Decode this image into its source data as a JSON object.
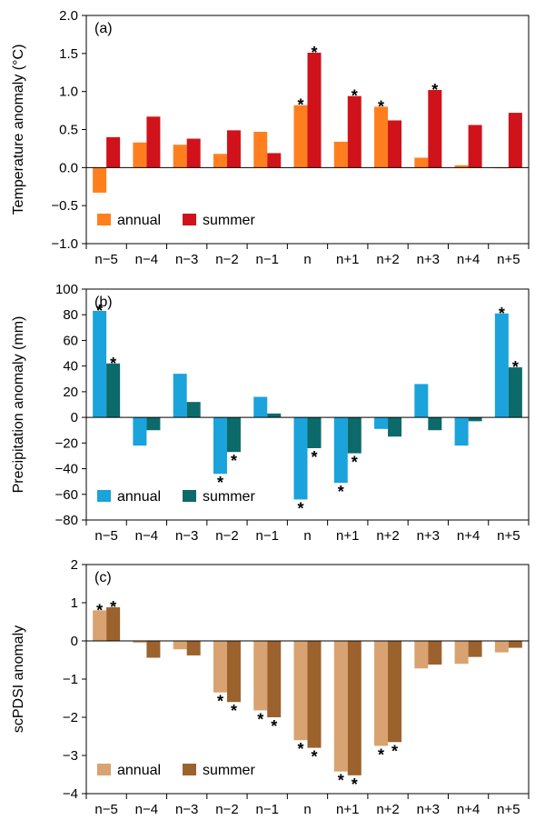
{
  "chart_data": [
    {
      "type": "bar",
      "panel_label": "(a)",
      "ylabel": "Temperature anomaly (°C)",
      "categories": [
        "n−5",
        "n−4",
        "n−3",
        "n−2",
        "n−1",
        "n",
        "n+1",
        "n+2",
        "n+3",
        "n+4",
        "n+5"
      ],
      "ylim": [
        -1.0,
        2.0
      ],
      "yticks": [
        "2.0",
        "1.5",
        "1.0",
        "0.5",
        "0.0",
        "-0.5",
        "-1.0"
      ],
      "grid": false,
      "legend_position": "bottom-left",
      "series": [
        {
          "name": "annual",
          "color": "#FF7F1E",
          "values": [
            -0.33,
            0.33,
            0.3,
            0.18,
            0.47,
            0.82,
            0.34,
            0.8,
            0.13,
            0.03,
            0.0
          ],
          "significant": [
            false,
            false,
            false,
            false,
            false,
            true,
            false,
            true,
            false,
            false,
            false
          ]
        },
        {
          "name": "summer",
          "color": "#D0121A",
          "values": [
            0.4,
            0.67,
            0.38,
            0.49,
            0.19,
            1.51,
            0.94,
            0.62,
            1.02,
            0.56,
            0.72
          ],
          "significant": [
            false,
            false,
            false,
            false,
            false,
            true,
            true,
            false,
            true,
            false,
            false
          ]
        }
      ],
      "significance_marker": "*"
    },
    {
      "type": "bar",
      "panel_label": "(b)",
      "ylabel": "Precipitation anomaly (mm)",
      "categories": [
        "n−5",
        "n−4",
        "n−3",
        "n−2",
        "n−1",
        "n",
        "n+1",
        "n+2",
        "n+3",
        "n+4",
        "n+5"
      ],
      "ylim": [
        -80,
        100
      ],
      "yticks": [
        "100",
        "80",
        "60",
        "40",
        "20",
        "0",
        "-20",
        "-40",
        "-60",
        "-80"
      ],
      "grid": false,
      "legend_position": "bottom-left",
      "series": [
        {
          "name": "annual",
          "color": "#1BA3DC",
          "values": [
            83,
            -22,
            34,
            -44,
            16,
            -64,
            -51,
            -9,
            26,
            -22,
            81
          ],
          "significant": [
            true,
            false,
            false,
            true,
            false,
            true,
            true,
            false,
            false,
            false,
            true
          ]
        },
        {
          "name": "summer",
          "color": "#0D6A6A",
          "values": [
            42,
            -10,
            12,
            -27,
            3,
            -24,
            -28,
            -15,
            -10,
            -3,
            39
          ],
          "significant": [
            true,
            false,
            false,
            true,
            false,
            true,
            true,
            false,
            false,
            false,
            true
          ]
        }
      ],
      "significance_marker": "*"
    },
    {
      "type": "bar",
      "panel_label": "(c)",
      "ylabel": "scPDSI anomaly",
      "categories": [
        "n−5",
        "n−4",
        "n−3",
        "n−2",
        "n−1",
        "n",
        "n+1",
        "n+2",
        "n+3",
        "n+4",
        "n+5"
      ],
      "ylim": [
        -4,
        2
      ],
      "yticks": [
        "2",
        "1",
        "0",
        "-1",
        "-2",
        "-3",
        "-4"
      ],
      "grid": false,
      "legend_position": "bottom-left",
      "series": [
        {
          "name": "annual",
          "color": "#D8A371",
          "values": [
            0.8,
            -0.05,
            -0.22,
            -1.35,
            -1.82,
            -2.6,
            -3.42,
            -2.75,
            -0.72,
            -0.6,
            -0.3
          ],
          "significant": [
            true,
            false,
            false,
            true,
            true,
            true,
            true,
            true,
            false,
            false,
            false
          ]
        },
        {
          "name": "summer",
          "color": "#9C622D",
          "values": [
            0.88,
            -0.44,
            -0.38,
            -1.6,
            -2.0,
            -2.8,
            -3.52,
            -2.65,
            -0.62,
            -0.42,
            -0.18
          ],
          "significant": [
            true,
            false,
            false,
            true,
            true,
            true,
            true,
            true,
            false,
            false,
            false
          ]
        }
      ],
      "significance_marker": "*"
    }
  ]
}
